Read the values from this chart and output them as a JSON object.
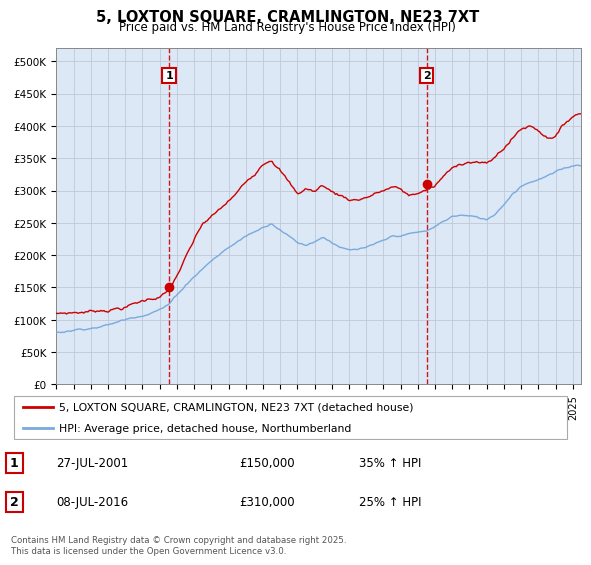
{
  "title": "5, LOXTON SQUARE, CRAMLINGTON, NE23 7XT",
  "subtitle": "Price paid vs. HM Land Registry's House Price Index (HPI)",
  "ylabel_ticks": [
    "£0",
    "£50K",
    "£100K",
    "£150K",
    "£200K",
    "£250K",
    "£300K",
    "£350K",
    "£400K",
    "£450K",
    "£500K"
  ],
  "ytick_vals": [
    0,
    50000,
    100000,
    150000,
    200000,
    250000,
    300000,
    350000,
    400000,
    450000,
    500000
  ],
  "ylim": [
    0,
    520000
  ],
  "xlim_start": 1995.0,
  "xlim_end": 2025.5,
  "vline1_x": 2001.55,
  "vline2_x": 2016.52,
  "marker1_x": 2001.55,
  "marker1_y": 150000,
  "marker2_x": 2016.52,
  "marker2_y": 310000,
  "red_color": "#cc0000",
  "blue_color": "#7aaadd",
  "vline_color": "#cc0000",
  "bg_fill_color": "#dce8f5",
  "legend_label_red": "5, LOXTON SQUARE, CRAMLINGTON, NE23 7XT (detached house)",
  "legend_label_blue": "HPI: Average price, detached house, Northumberland",
  "table_row1": [
    "1",
    "27-JUL-2001",
    "£150,000",
    "35% ↑ HPI"
  ],
  "table_row2": [
    "2",
    "08-JUL-2016",
    "£310,000",
    "25% ↑ HPI"
  ],
  "footnote": "Contains HM Land Registry data © Crown copyright and database right 2025.\nThis data is licensed under the Open Government Licence v3.0.",
  "background_color": "#ffffff",
  "grid_color": "#c0c8d8"
}
